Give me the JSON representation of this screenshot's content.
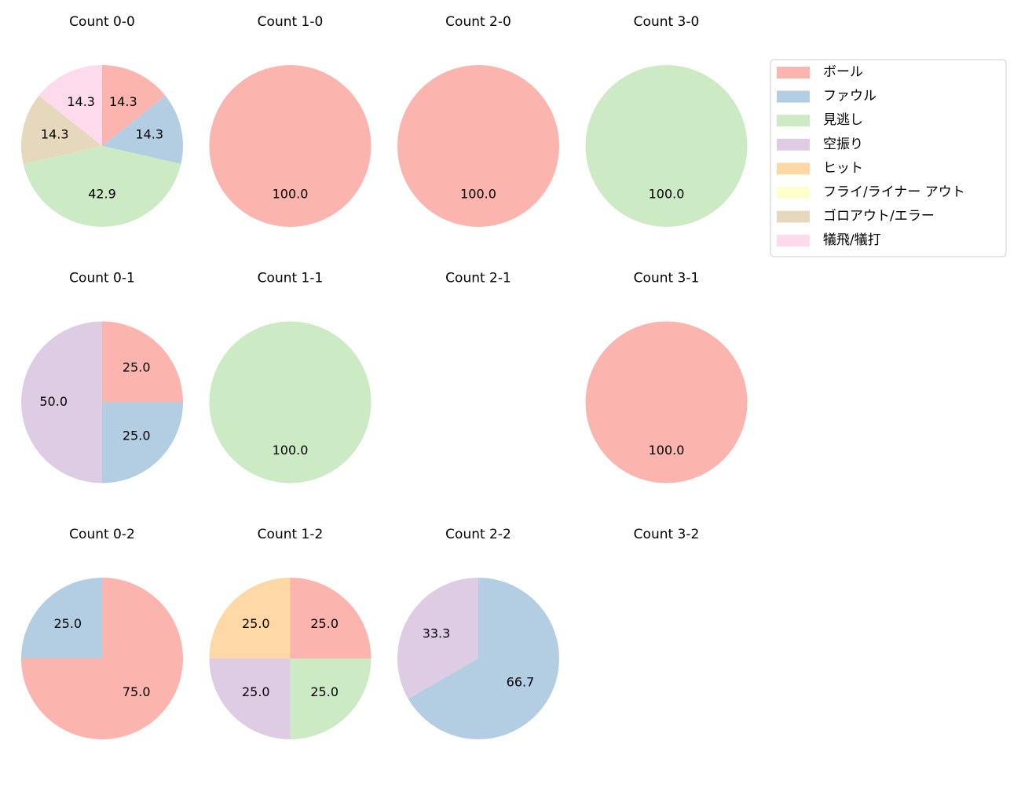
{
  "legend": {
    "labels": [
      "ボール",
      "ファウル",
      "見逃し",
      "空振り",
      "ヒット",
      "フライ/ライナー アウト",
      "ゴロアウト/エラー",
      "犠飛/犠打"
    ],
    "colors": [
      "#fbb4ae",
      "#b3cde3",
      "#ccebc5",
      "#decbe4",
      "#fed9a6",
      "#ffffcc",
      "#e5d8bd",
      "#fddaec"
    ]
  },
  "chart_data": [
    {
      "type": "pie",
      "title": "Count 0-0",
      "categories": [
        "ボール",
        "ファウル",
        "見逃し",
        "ゴロアウト/エラー",
        "犠飛/犠打"
      ],
      "values": [
        14.3,
        14.3,
        42.9,
        14.3,
        14.3
      ],
      "value_labels": [
        "14.3",
        "14.3",
        "42.9",
        "14.3",
        "14.3"
      ]
    },
    {
      "type": "pie",
      "title": "Count 1-0",
      "categories": [
        "ボール"
      ],
      "values": [
        100
      ],
      "value_labels": [
        "100.0"
      ]
    },
    {
      "type": "pie",
      "title": "Count 2-0",
      "categories": [
        "ボール"
      ],
      "values": [
        100
      ],
      "value_labels": [
        "100.0"
      ]
    },
    {
      "type": "pie",
      "title": "Count 3-0",
      "categories": [
        "見逃し"
      ],
      "values": [
        100
      ],
      "value_labels": [
        "100.0"
      ]
    },
    {
      "type": "pie",
      "title": "Count 0-1",
      "categories": [
        "ボール",
        "ファウル",
        "空振り"
      ],
      "values": [
        25,
        25,
        50
      ],
      "value_labels": [
        "25.0",
        "25.0",
        "50.0"
      ]
    },
    {
      "type": "pie",
      "title": "Count 1-1",
      "categories": [
        "見逃し"
      ],
      "values": [
        100
      ],
      "value_labels": [
        "100.0"
      ]
    },
    {
      "type": "pie",
      "title": "Count 2-1",
      "categories": [],
      "values": [],
      "value_labels": []
    },
    {
      "type": "pie",
      "title": "Count 3-1",
      "categories": [
        "ボール"
      ],
      "values": [
        100
      ],
      "value_labels": [
        "100.0"
      ]
    },
    {
      "type": "pie",
      "title": "Count 0-2",
      "categories": [
        "ボール",
        "ファウル"
      ],
      "values": [
        75,
        25
      ],
      "value_labels": [
        "75.0",
        "25.0"
      ]
    },
    {
      "type": "pie",
      "title": "Count 1-2",
      "categories": [
        "ボール",
        "見逃し",
        "空振り",
        "ヒット"
      ],
      "values": [
        25,
        25,
        25,
        25
      ],
      "value_labels": [
        "25.0",
        "25.0",
        "25.0",
        "25.0"
      ]
    },
    {
      "type": "pie",
      "title": "Count 2-2",
      "categories": [
        "ファウル",
        "空振り"
      ],
      "values": [
        66.7,
        33.3
      ],
      "value_labels": [
        "66.7",
        "33.3"
      ]
    },
    {
      "type": "pie",
      "title": "Count 3-2",
      "categories": [],
      "values": [],
      "value_labels": []
    }
  ]
}
